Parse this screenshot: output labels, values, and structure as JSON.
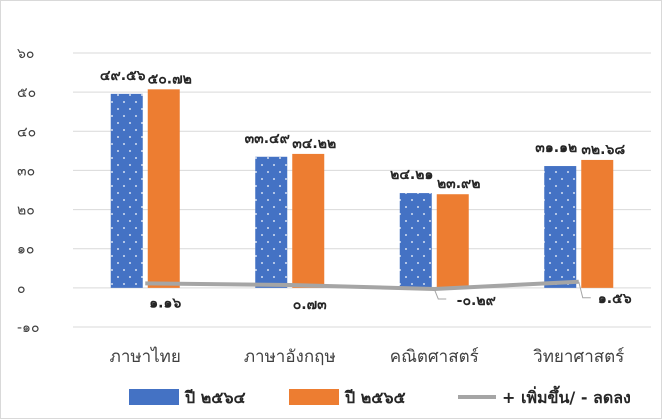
{
  "chart_data": {
    "type": "bar",
    "title": "",
    "xlabel": "",
    "ylabel": "",
    "categories": [
      "ภาษาไทย",
      "ภาษาอังกฤษ",
      "คณิตศาสตร์",
      "วิทยาศาสตร์"
    ],
    "series": [
      {
        "name": "ปี ๒๕๖๔",
        "type": "bar",
        "values": [
          49.56,
          33.49,
          24.21,
          31.12
        ],
        "labels": [
          "๔๙.๕๖",
          "๓๓.๔๙",
          "๒๔.๒๑",
          "๓๑.๑๒"
        ],
        "color": "#4472c4",
        "pattern": "dots"
      },
      {
        "name": "ปี ๒๕๖๕",
        "type": "bar",
        "values": [
          50.72,
          34.22,
          23.92,
          32.68
        ],
        "labels": [
          "๕๐.๗๒",
          "๓๔.๒๒",
          "๒๓.๙๒",
          "๓๒.๖๘"
        ],
        "color": "#ed7d31"
      },
      {
        "name": "+ เพิ่มขึ้น/ - ลดลง",
        "type": "line",
        "values": [
          1.16,
          0.73,
          -0.29,
          1.56
        ],
        "labels": [
          "๑.๑๖",
          "๐.๗๓",
          "-๐.๒๙",
          "๑.๕๖"
        ],
        "color": "#a5a5a5"
      }
    ],
    "ylim": [
      -10,
      60
    ],
    "yticks": [
      -10,
      0,
      10,
      20,
      30,
      40,
      50,
      60
    ],
    "ytick_labels": [
      "-๑๐",
      "๐",
      "๑๐",
      "๒๐",
      "๓๐",
      "๔๐",
      "๕๐",
      "๖๐"
    ],
    "grid": true,
    "legend": "bottom"
  }
}
